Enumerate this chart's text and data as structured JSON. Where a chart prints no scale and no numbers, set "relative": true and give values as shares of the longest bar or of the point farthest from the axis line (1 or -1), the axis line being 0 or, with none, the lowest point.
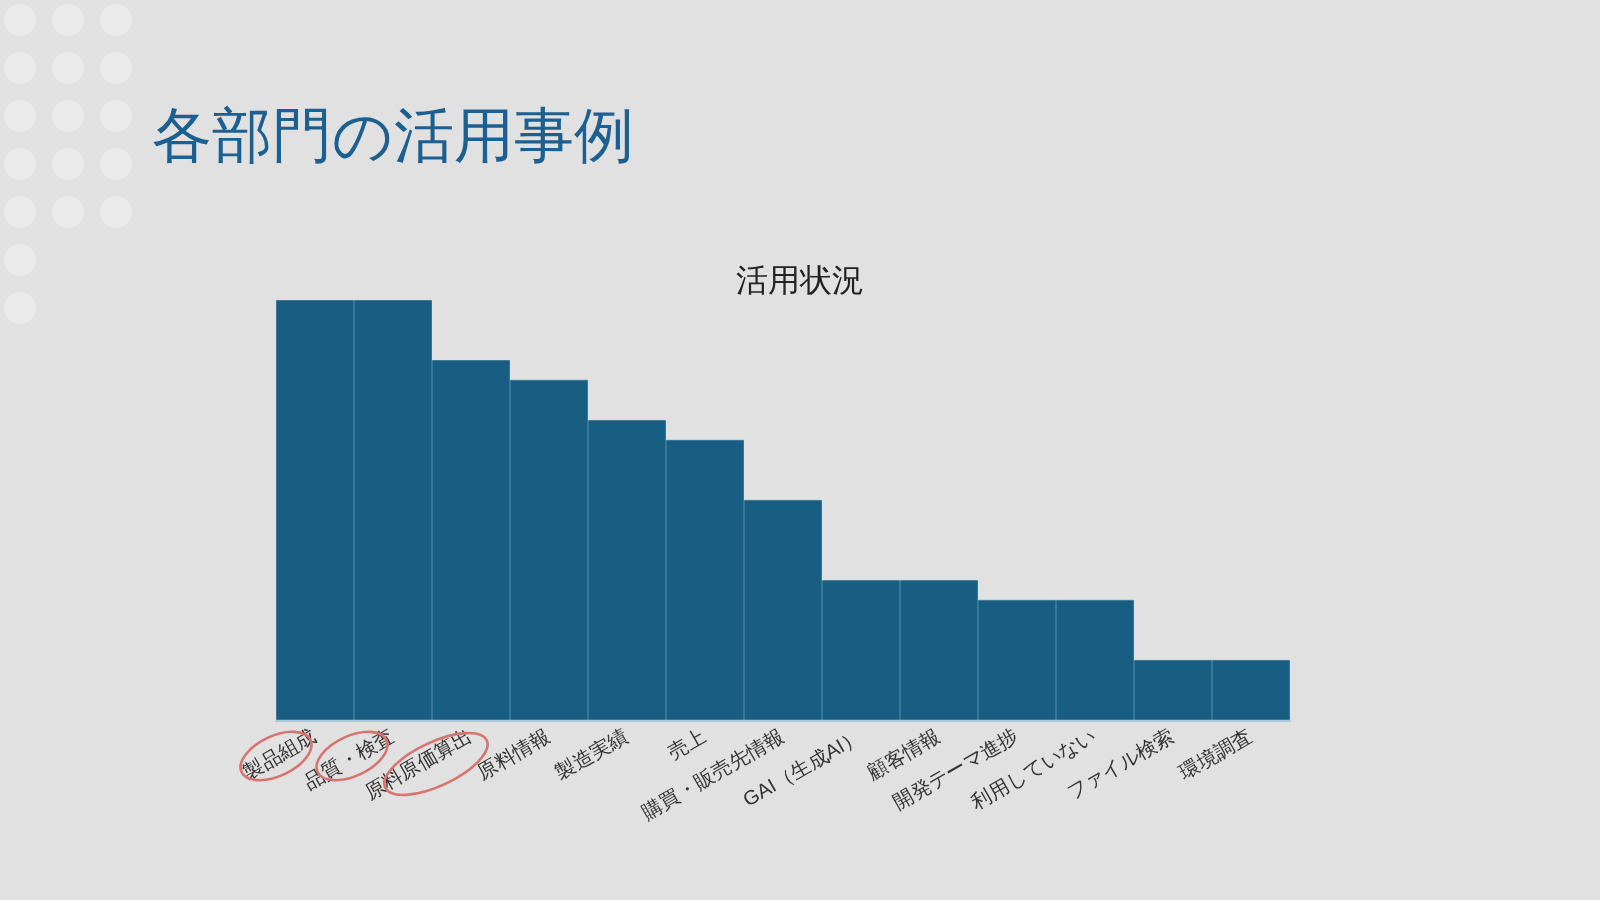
{
  "chart_data": {
    "type": "bar",
    "title": "各部門の活用事例",
    "subtitle": "活用状況",
    "relative": true,
    "categories": [
      "製品組成",
      "品質・検査",
      "原料原価算出",
      "原料情報",
      "製造実績",
      "売上",
      "購買・販売先情報",
      "GAI（生成AI）",
      "顧客情報",
      "開発テーマ進捗",
      "利用していない",
      "ファイル検索",
      "環境調査"
    ],
    "values": [
      1,
      1,
      0.857,
      0.81,
      0.714,
      0.667,
      0.524,
      0.333,
      0.333,
      0.286,
      0.286,
      0.143,
      0.143
    ],
    "color": "#175e82",
    "grid": false
  }
}
